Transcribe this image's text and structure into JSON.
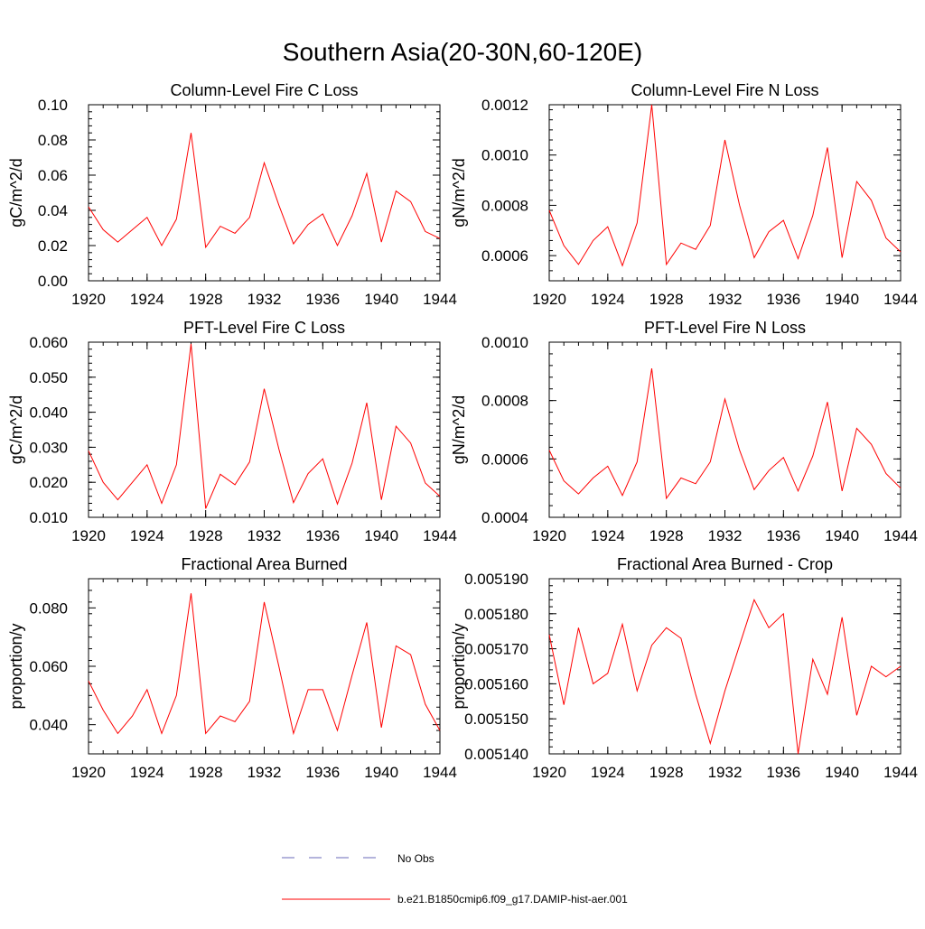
{
  "figure": {
    "title": "Southern Asia(20-30N,60-120E)"
  },
  "legend": {
    "items": [
      {
        "label": "No Obs",
        "style": "dashed",
        "color": "#6a6ab8"
      },
      {
        "label": "b.e21.B1850cmip6.f09_g17.DAMIP-hist-aer.001",
        "style": "solid",
        "color": "#ff0000"
      }
    ]
  },
  "series_color": "#ff0000",
  "chart_data": [
    {
      "type": "line",
      "title": "Column-Level Fire C Loss",
      "ylabel": "gC/m^2/d",
      "xlim": [
        1920,
        1944
      ],
      "ylim": [
        0.0,
        0.1
      ],
      "xticks": [
        1920,
        1924,
        1928,
        1932,
        1936,
        1940,
        1944
      ],
      "xtick_labels": [
        "1920",
        "1924",
        "1928",
        "1932",
        "1936",
        "1940",
        "1944"
      ],
      "yticks": [
        0.0,
        0.02,
        0.04,
        0.06,
        0.08,
        0.1
      ],
      "ytick_labels": [
        "0.00",
        "0.02",
        "0.04",
        "0.06",
        "0.08",
        "0.10"
      ],
      "x": [
        1920,
        1921,
        1922,
        1923,
        1924,
        1925,
        1926,
        1927,
        1928,
        1929,
        1930,
        1931,
        1932,
        1933,
        1934,
        1935,
        1936,
        1937,
        1938,
        1939,
        1940,
        1941,
        1942,
        1943,
        1944
      ],
      "y": [
        0.042,
        0.029,
        0.022,
        0.029,
        0.036,
        0.02,
        0.035,
        0.084,
        0.019,
        0.031,
        0.027,
        0.036,
        0.067,
        0.043,
        0.021,
        0.032,
        0.038,
        0.02,
        0.037,
        0.061,
        0.022,
        0.051,
        0.045,
        0.028,
        0.024
      ]
    },
    {
      "type": "line",
      "title": "Column-Level Fire N Loss",
      "ylabel": "gN/m^2/d",
      "xlim": [
        1920,
        1944
      ],
      "ylim": [
        0.0005,
        0.0012
      ],
      "xticks": [
        1920,
        1924,
        1928,
        1932,
        1936,
        1940,
        1944
      ],
      "xtick_labels": [
        "1920",
        "1924",
        "1928",
        "1932",
        "1936",
        "1940",
        "1944"
      ],
      "yticks": [
        0.0006,
        0.0008,
        0.001,
        0.0012
      ],
      "ytick_labels": [
        "0.0006",
        "0.0008",
        "0.0010",
        "0.0012"
      ],
      "x": [
        1920,
        1921,
        1922,
        1923,
        1924,
        1925,
        1926,
        1927,
        1928,
        1929,
        1930,
        1931,
        1932,
        1933,
        1934,
        1935,
        1936,
        1937,
        1938,
        1939,
        1940,
        1941,
        1942,
        1943,
        1944
      ],
      "y": [
        0.00078,
        0.00064,
        0.000565,
        0.00066,
        0.000715,
        0.00056,
        0.00073,
        0.0012,
        0.000565,
        0.00065,
        0.000625,
        0.00072,
        0.00106,
        0.0008,
        0.000592,
        0.000695,
        0.00074,
        0.000588,
        0.00076,
        0.00103,
        0.000592,
        0.000895,
        0.00082,
        0.00067,
        0.000615
      ]
    },
    {
      "type": "line",
      "title": "PFT-Level Fire C Loss",
      "ylabel": "gC/m^2/d",
      "xlim": [
        1920,
        1944
      ],
      "ylim": [
        0.01,
        0.06
      ],
      "xticks": [
        1920,
        1924,
        1928,
        1932,
        1936,
        1940,
        1944
      ],
      "xtick_labels": [
        "1920",
        "1924",
        "1928",
        "1932",
        "1936",
        "1940",
        "1944"
      ],
      "yticks": [
        0.01,
        0.02,
        0.03,
        0.04,
        0.05,
        0.06
      ],
      "ytick_labels": [
        "0.010",
        "0.020",
        "0.030",
        "0.040",
        "0.050",
        "0.060"
      ],
      "x": [
        1920,
        1921,
        1922,
        1923,
        1924,
        1925,
        1926,
        1927,
        1928,
        1929,
        1930,
        1931,
        1932,
        1933,
        1934,
        1935,
        1936,
        1937,
        1938,
        1939,
        1940,
        1941,
        1942,
        1943,
        1944
      ],
      "y": [
        0.029,
        0.02,
        0.015,
        0.02,
        0.025,
        0.014,
        0.025,
        0.0595,
        0.0125,
        0.0223,
        0.0193,
        0.0258,
        0.0467,
        0.0295,
        0.0142,
        0.0225,
        0.0267,
        0.0138,
        0.0255,
        0.0427,
        0.015,
        0.036,
        0.0312,
        0.0198,
        0.016
      ]
    },
    {
      "type": "line",
      "title": "PFT-Level Fire N Loss",
      "ylabel": "gN/m^2/d",
      "xlim": [
        1920,
        1944
      ],
      "ylim": [
        0.0004,
        0.001
      ],
      "xticks": [
        1920,
        1924,
        1928,
        1932,
        1936,
        1940,
        1944
      ],
      "xtick_labels": [
        "1920",
        "1924",
        "1928",
        "1932",
        "1936",
        "1940",
        "1944"
      ],
      "yticks": [
        0.0004,
        0.0006,
        0.0008,
        0.001
      ],
      "ytick_labels": [
        "0.0004",
        "0.0006",
        "0.0008",
        "0.0010"
      ],
      "x": [
        1920,
        1921,
        1922,
        1923,
        1924,
        1925,
        1926,
        1927,
        1928,
        1929,
        1930,
        1931,
        1932,
        1933,
        1934,
        1935,
        1936,
        1937,
        1938,
        1939,
        1940,
        1941,
        1942,
        1943,
        1944
      ],
      "y": [
        0.00063,
        0.000525,
        0.00048,
        0.000535,
        0.000575,
        0.000475,
        0.00059,
        0.00091,
        0.000465,
        0.000535,
        0.000515,
        0.00059,
        0.000805,
        0.00063,
        0.000495,
        0.00056,
        0.000605,
        0.00049,
        0.00061,
        0.000795,
        0.00049,
        0.000705,
        0.00065,
        0.00055,
        0.0005
      ]
    },
    {
      "type": "line",
      "title": "Fractional Area Burned",
      "ylabel": "proportion/y",
      "xlim": [
        1920,
        1944
      ],
      "ylim": [
        0.03,
        0.09
      ],
      "xticks": [
        1920,
        1924,
        1928,
        1932,
        1936,
        1940,
        1944
      ],
      "xtick_labels": [
        "1920",
        "1924",
        "1928",
        "1932",
        "1936",
        "1940",
        "1944"
      ],
      "yticks": [
        0.04,
        0.06,
        0.08
      ],
      "ytick_labels": [
        "0.040",
        "0.060",
        "0.080"
      ],
      "x": [
        1920,
        1921,
        1922,
        1923,
        1924,
        1925,
        1926,
        1927,
        1928,
        1929,
        1930,
        1931,
        1932,
        1933,
        1934,
        1935,
        1936,
        1937,
        1938,
        1939,
        1940,
        1941,
        1942,
        1943,
        1944
      ],
      "y": [
        0.055,
        0.045,
        0.037,
        0.043,
        0.052,
        0.037,
        0.05,
        0.085,
        0.037,
        0.043,
        0.041,
        0.048,
        0.082,
        0.06,
        0.037,
        0.052,
        0.052,
        0.038,
        0.057,
        0.075,
        0.039,
        0.067,
        0.064,
        0.047,
        0.038
      ]
    },
    {
      "type": "line",
      "title": "Fractional Area Burned - Crop",
      "ylabel": "proportion/y",
      "xlim": [
        1920,
        1944
      ],
      "ylim": [
        0.00514,
        0.00519
      ],
      "xticks": [
        1920,
        1924,
        1928,
        1932,
        1936,
        1940,
        1944
      ],
      "xtick_labels": [
        "1920",
        "1924",
        "1928",
        "1932",
        "1936",
        "1940",
        "1944"
      ],
      "yticks": [
        0.00514,
        0.00515,
        0.00516,
        0.00517,
        0.00518,
        0.00519
      ],
      "ytick_labels": [
        "0.005140",
        "0.005150",
        "0.005160",
        "0.005170",
        "0.005180",
        "0.005190"
      ],
      "x": [
        1920,
        1921,
        1922,
        1923,
        1924,
        1925,
        1926,
        1927,
        1928,
        1929,
        1930,
        1931,
        1932,
        1933,
        1934,
        1935,
        1936,
        1937,
        1938,
        1939,
        1940,
        1941,
        1942,
        1943,
        1944
      ],
      "y": [
        0.005174,
        0.005154,
        0.005176,
        0.00516,
        0.005163,
        0.005177,
        0.005158,
        0.005171,
        0.005176,
        0.005173,
        0.005157,
        0.005143,
        0.005158,
        0.005171,
        0.005184,
        0.005176,
        0.00518,
        0.00514,
        0.005167,
        0.005157,
        0.005179,
        0.005151,
        0.005165,
        0.005162,
        0.005165
      ]
    }
  ]
}
